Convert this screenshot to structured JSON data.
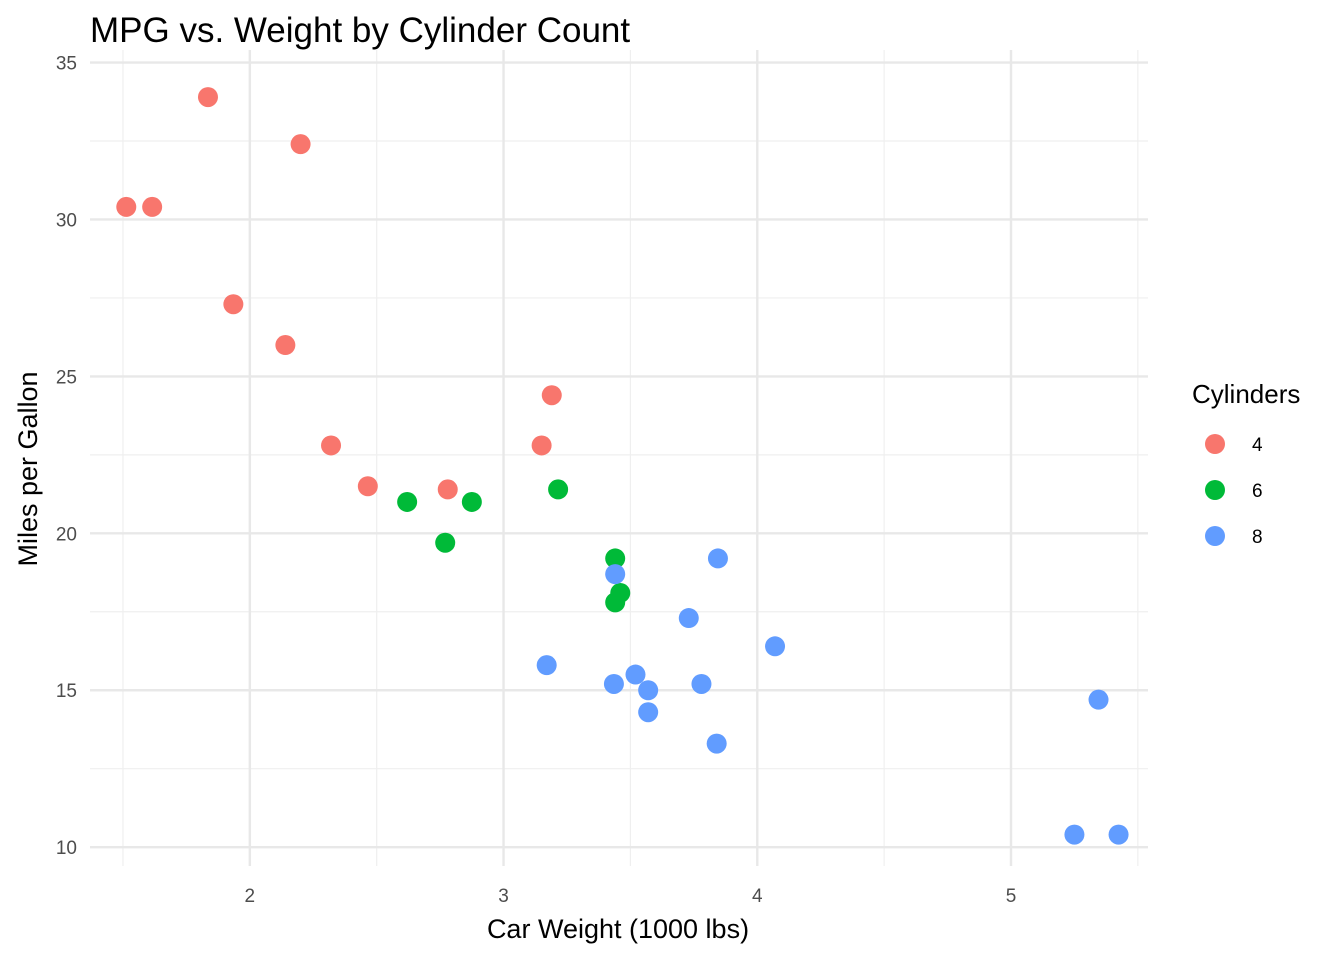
{
  "chart_data": {
    "type": "scatter",
    "title": "MPG vs. Weight by Cylinder Count",
    "xlabel": "Car Weight (1000 lbs)",
    "ylabel": "Miles per Gallon",
    "xlim": [
      1.37,
      5.54
    ],
    "ylim": [
      9.4,
      35.4
    ],
    "x_ticks": [
      2,
      3,
      4,
      5
    ],
    "x_minor_ticks": [
      1.5,
      2.5,
      3.5,
      4.5,
      5.5
    ],
    "y_ticks": [
      10,
      15,
      20,
      25,
      30,
      35
    ],
    "y_minor_ticks": [
      12.5,
      17.5,
      22.5,
      27.5,
      32.5
    ],
    "grid": true,
    "legend": {
      "title": "Cylinders",
      "position": "right"
    },
    "series": [
      {
        "name": "4",
        "color": "#F8766D",
        "points": [
          {
            "x": 1.835,
            "y": 33.9
          },
          {
            "x": 2.2,
            "y": 32.4
          },
          {
            "x": 1.513,
            "y": 30.4
          },
          {
            "x": 1.615,
            "y": 30.4
          },
          {
            "x": 1.935,
            "y": 27.3
          },
          {
            "x": 2.14,
            "y": 26.0
          },
          {
            "x": 3.19,
            "y": 24.4
          },
          {
            "x": 2.32,
            "y": 22.8
          },
          {
            "x": 3.15,
            "y": 22.8
          },
          {
            "x": 2.465,
            "y": 21.5
          },
          {
            "x": 2.78,
            "y": 21.4
          }
        ]
      },
      {
        "name": "6",
        "color": "#00BA38",
        "points": [
          {
            "x": 2.62,
            "y": 21.0
          },
          {
            "x": 2.875,
            "y": 21.0
          },
          {
            "x": 3.215,
            "y": 21.4
          },
          {
            "x": 2.77,
            "y": 19.7
          },
          {
            "x": 3.44,
            "y": 19.2
          },
          {
            "x": 3.46,
            "y": 18.1
          },
          {
            "x": 3.44,
            "y": 17.8
          }
        ]
      },
      {
        "name": "8",
        "color": "#619CFF",
        "points": [
          {
            "x": 3.44,
            "y": 18.7
          },
          {
            "x": 3.845,
            "y": 19.2
          },
          {
            "x": 3.73,
            "y": 17.3
          },
          {
            "x": 4.07,
            "y": 16.4
          },
          {
            "x": 3.17,
            "y": 15.8
          },
          {
            "x": 3.435,
            "y": 15.2
          },
          {
            "x": 3.52,
            "y": 15.5
          },
          {
            "x": 3.57,
            "y": 15.0
          },
          {
            "x": 3.78,
            "y": 15.2
          },
          {
            "x": 3.57,
            "y": 14.3
          },
          {
            "x": 3.84,
            "y": 13.3
          },
          {
            "x": 5.345,
            "y": 14.7
          },
          {
            "x": 5.25,
            "y": 10.4
          },
          {
            "x": 5.424,
            "y": 10.4
          }
        ]
      }
    ]
  }
}
